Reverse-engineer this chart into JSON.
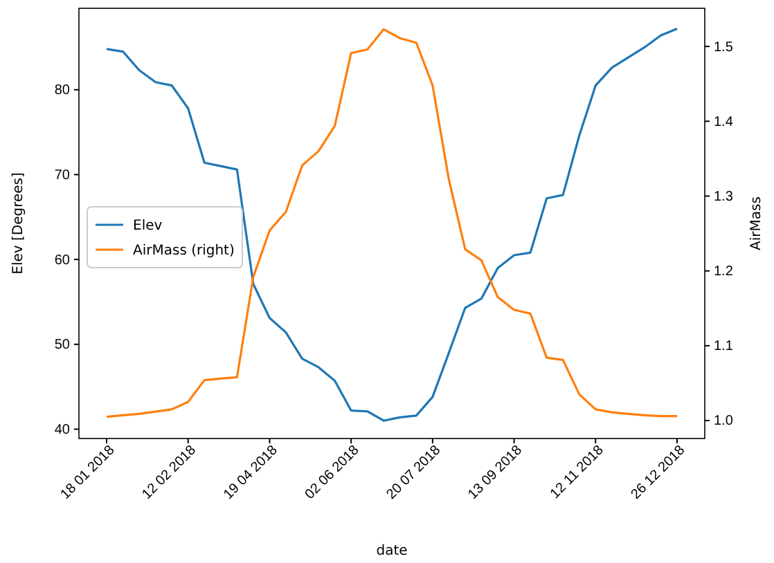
{
  "chart_data": {
    "type": "line",
    "xlabel": "date",
    "ylabel": "Elev [Degrees]",
    "y2label": "AirMass",
    "categories": [
      "18 01 2018",
      null,
      null,
      null,
      null,
      "12 02 2018",
      null,
      null,
      null,
      null,
      "19 04 2018",
      null,
      null,
      null,
      null,
      "02 06 2018",
      null,
      null,
      null,
      null,
      "20 07 2018",
      null,
      null,
      null,
      null,
      "13 09 2018",
      null,
      null,
      null,
      null,
      "12 11 2018",
      null,
      null,
      null,
      null,
      "26 12 2018"
    ],
    "series": [
      {
        "name": "Elev",
        "color": "#1f77b4",
        "values": [
          84.8,
          84.5,
          82.3,
          80.9,
          80.5,
          77.8,
          71.4,
          71.0,
          70.6,
          57.1,
          53.1,
          51.4,
          48.3,
          47.3,
          45.7,
          42.2,
          42.1,
          41.0,
          41.4,
          41.6,
          43.8,
          49.0,
          54.3,
          55.4,
          59.0,
          60.5,
          60.8,
          67.2,
          67.6,
          74.6,
          80.5,
          82.6,
          83.8,
          85.0,
          86.4,
          87.2
        ]
      },
      {
        "name": "AirMass (right)",
        "color": "#ff7f0e",
        "axis": "y2",
        "values": [
          1.005,
          1.007,
          1.009,
          1.012,
          1.015,
          1.025,
          1.054,
          1.056,
          1.058,
          1.192,
          1.254,
          1.279,
          1.341,
          1.36,
          1.394,
          1.491,
          1.496,
          1.523,
          1.511,
          1.505,
          1.448,
          1.322,
          1.229,
          1.214,
          1.165,
          1.148,
          1.143,
          1.084,
          1.081,
          1.035,
          1.015,
          1.011,
          1.009,
          1.007,
          1.006,
          1.006
        ]
      }
    ],
    "ylim": [
      38.9,
      89.6
    ],
    "yticks": [
      40,
      50,
      60,
      70,
      80
    ],
    "y2lim": [
      0.976,
      1.551
    ],
    "y2ticks": [
      {
        "value": 1.0,
        "label": "1.0"
      },
      1.1,
      1.2,
      1.3,
      1.4,
      1.5
    ],
    "legend": "center left",
    "grid": false
  }
}
